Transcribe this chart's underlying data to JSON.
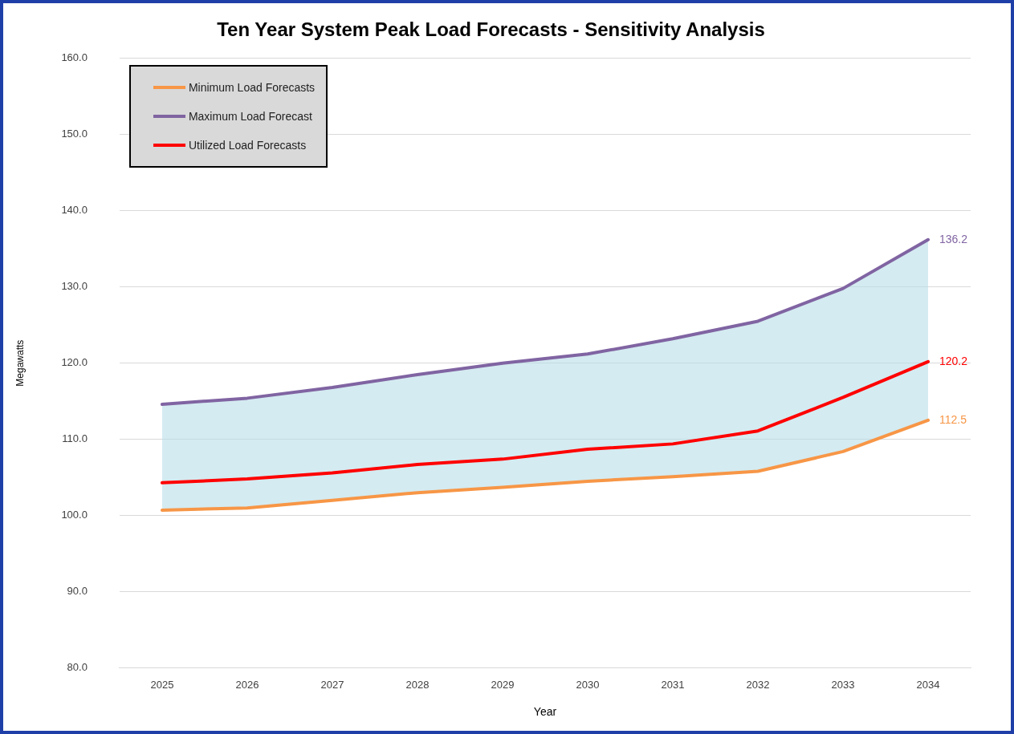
{
  "chart_data": {
    "type": "line",
    "title": "Ten Year System Peak Load Forecasts - Sensitivity Analysis",
    "xlabel": "Year",
    "ylabel": "Megawatts",
    "categories": [
      "2025",
      "2026",
      "2027",
      "2028",
      "2029",
      "2030",
      "2031",
      "2032",
      "2033",
      "2034"
    ],
    "series": [
      {
        "name": "Minimum Load Forecasts",
        "color": "#f79646",
        "values": [
          100.7,
          101.0,
          102.0,
          103.0,
          103.7,
          104.5,
          105.1,
          105.8,
          108.4,
          112.5
        ],
        "value_labels": [
          null,
          null,
          null,
          null,
          null,
          null,
          null,
          null,
          null,
          "112.5"
        ]
      },
      {
        "name": "Maximum Load Forecast",
        "color": "#8064a2",
        "values": [
          114.6,
          115.4,
          116.8,
          118.5,
          120.0,
          121.2,
          123.2,
          125.5,
          129.8,
          136.2
        ],
        "value_labels": [
          null,
          null,
          null,
          null,
          null,
          null,
          null,
          null,
          null,
          "136.2"
        ]
      },
      {
        "name": "Utilized Load Forecasts",
        "color": "#ff0000",
        "values": [
          104.3,
          104.8,
          105.6,
          106.7,
          107.4,
          108.7,
          109.4,
          111.1,
          115.5,
          120.2
        ],
        "value_labels": [
          null,
          null,
          null,
          null,
          null,
          null,
          null,
          null,
          null,
          "120.2"
        ],
        "lower": [
          100.7,
          101.0,
          102.0,
          103.0,
          103.7,
          104.5,
          105.1,
          105.8,
          108.4,
          112.5
        ],
        "upper": [
          114.6,
          115.4,
          116.8,
          118.5,
          120.0,
          121.2,
          123.2,
          125.5,
          129.8,
          136.2
        ]
      }
    ],
    "ylim": [
      80,
      160
    ],
    "yticks": [
      {
        "value": 80,
        "label": "80.0"
      },
      {
        "value": 90,
        "label": "90.0"
      },
      {
        "value": 100,
        "label": "100.0"
      },
      {
        "value": 110,
        "label": "110.0"
      },
      {
        "value": 120,
        "label": "120.0"
      },
      {
        "value": 130,
        "label": "130.0"
      },
      {
        "value": 140,
        "label": "140.0"
      },
      {
        "value": 150,
        "label": "150.0"
      },
      {
        "value": 160,
        "label": "160.0"
      }
    ],
    "grid": "y",
    "legend": "top left",
    "marker": "none",
    "line_style": "solid"
  }
}
